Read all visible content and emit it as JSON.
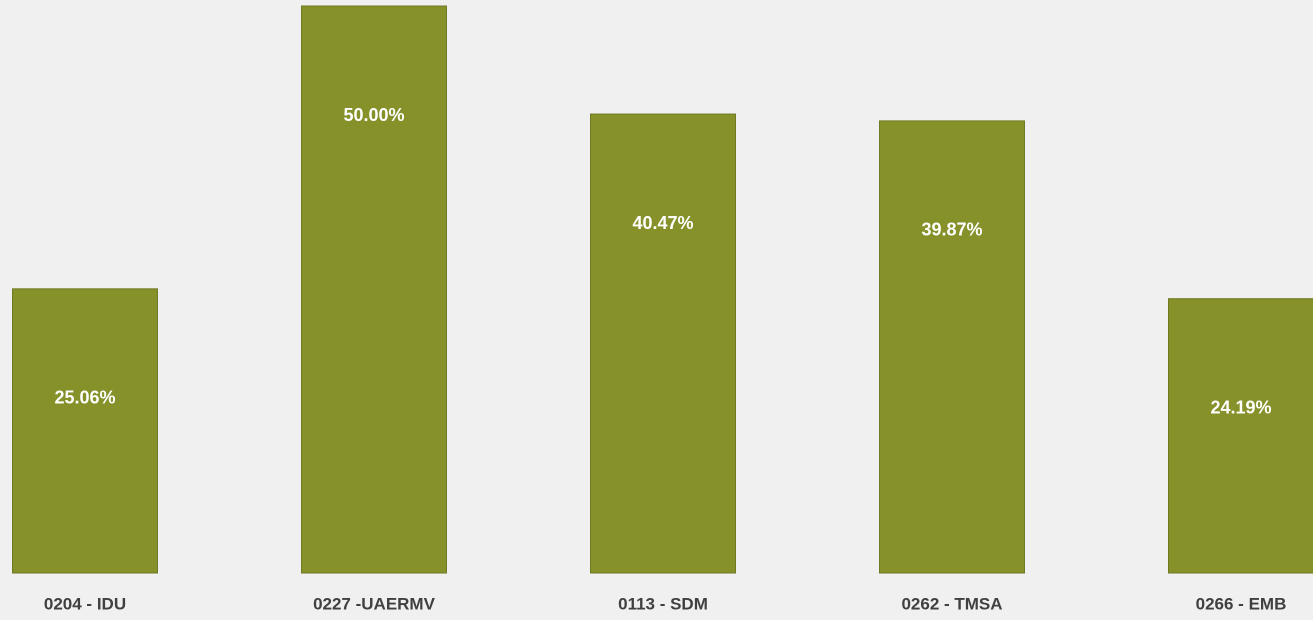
{
  "chart_data": {
    "type": "bar",
    "categories": [
      "0204 - IDU",
      "0227 -UAERMV",
      "0113 - SDM",
      "0262 - TMSA",
      "0266 - EMB"
    ],
    "values": [
      25.06,
      50.0,
      40.47,
      39.87,
      24.19
    ],
    "value_labels": [
      "25.06%",
      "50.00%",
      "40.47%",
      "39.87%",
      "24.19%"
    ],
    "color": "#86912a"
  }
}
